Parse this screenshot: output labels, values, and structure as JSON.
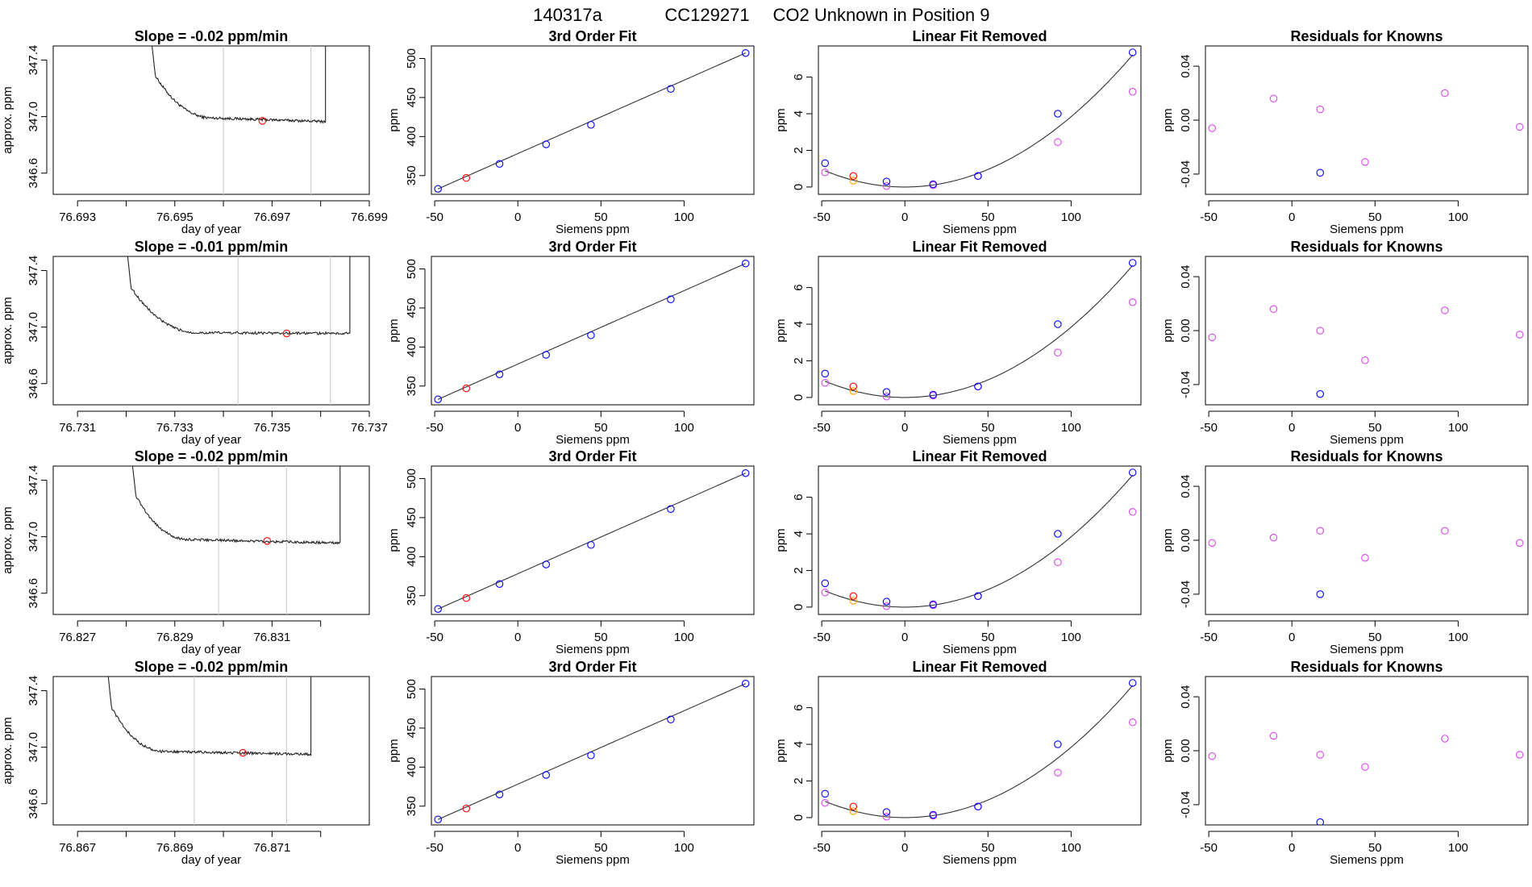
{
  "page": {
    "title_id": "140317a",
    "title_cylinder": "CC129271",
    "title_text": "CO2 Unknown in Position  9"
  },
  "colors": {
    "axis": "#000000",
    "trace": "#222222",
    "fit_line": "#333333",
    "gridline": "#cfcfcf",
    "known": "#0000ff",
    "unknown": "#ff0000",
    "orange": "#ffa500",
    "magenta": "#da44f0"
  },
  "panel_titles": {
    "fit": "3rd Order Fit",
    "linear_removed": "Linear Fit Removed",
    "residuals": "Residuals for Knowns"
  },
  "axis_labels": {
    "day": "day of year",
    "approx": "approx. ppm",
    "siemens": "Siemens ppm",
    "ppm": "ppm"
  },
  "chart_data": [
    {
      "type": "line",
      "panel": "trace",
      "title": "Slope =  -0.02  ppm/min",
      "xlabel": "day of year",
      "ylabel": "approx. ppm",
      "xlim": [
        76.6925,
        76.699
      ],
      "ylim": [
        346.45,
        347.5
      ],
      "xticks": [
        76.693,
        76.694,
        76.695,
        76.696,
        76.697,
        76.698,
        76.699
      ],
      "xtick_labels": [
        "76.693",
        "",
        "76.695",
        "",
        "76.697",
        "",
        "76.699"
      ],
      "yticks": [
        346.6,
        347.0,
        347.4
      ],
      "ytick_labels": [
        "346.6",
        "347.0",
        "347.4"
      ],
      "vlines": [
        76.696,
        76.6978
      ],
      "trace": {
        "x0": 76.6945,
        "x_end": 76.6981,
        "x_flat": 76.6958,
        "x_steep_end": 76.6946,
        "start": 347.6,
        "tail": 347.04,
        "flat": 346.99,
        "dip": 346.965
      },
      "point": {
        "x": 76.6968,
        "y": 346.97
      }
    },
    {
      "type": "scatter",
      "panel": "fit",
      "title": "3rd Order Fit",
      "xlabel": "Siemens ppm",
      "ylabel": "ppm",
      "xlim": [
        -52,
        142
      ],
      "ylim": [
        326,
        516
      ],
      "xticks": [
        -50,
        0,
        50,
        100
      ],
      "xtick_labels": [
        "-50",
        "0",
        "50",
        "100"
      ],
      "yticks": [
        350,
        400,
        450,
        500
      ],
      "ytick_labels": [
        "350",
        "400",
        "450",
        "500"
      ],
      "fit_line": [
        [
          -48,
          333
        ],
        [
          137,
          507
        ]
      ],
      "points_known": [
        [
          -48,
          333
        ],
        [
          -11,
          365
        ],
        [
          17,
          390
        ],
        [
          44,
          415
        ],
        [
          92,
          461
        ],
        [
          137,
          507
        ]
      ],
      "points_unknown": [
        [
          -31,
          347
        ]
      ]
    },
    {
      "type": "scatter",
      "panel": "linear_removed",
      "title": "Linear Fit Removed",
      "xlabel": "Siemens ppm",
      "ylabel": "ppm",
      "xlim": [
        -52,
        142
      ],
      "ylim": [
        -0.4,
        7.7
      ],
      "xticks": [
        -50,
        0,
        50,
        100
      ],
      "xtick_labels": [
        "-50",
        "0",
        "50",
        "100"
      ],
      "yticks": [
        0,
        2,
        4,
        6
      ],
      "ytick_labels": [
        "0",
        "2",
        "4",
        "6"
      ],
      "curve_coeff": 0.000384,
      "curve_x": [
        -48,
        137
      ],
      "points_known": [
        [
          -48,
          1.3
        ],
        [
          -11,
          0.3
        ],
        [
          17,
          0.15
        ],
        [
          44,
          0.6
        ],
        [
          92,
          4.0
        ],
        [
          137,
          7.35
        ]
      ],
      "points_magenta": [
        [
          -48,
          0.8
        ],
        [
          -11,
          0.05
        ],
        [
          17,
          0.1
        ],
        [
          44,
          0.6
        ],
        [
          92,
          2.45
        ],
        [
          137,
          5.2
        ]
      ],
      "points_unknown": [
        [
          -31,
          0.6
        ]
      ],
      "points_orange": [
        [
          -31,
          0.35
        ]
      ]
    },
    {
      "type": "scatter",
      "panel": "residuals",
      "title": "Residuals for Knowns",
      "xlabel": "Siemens ppm",
      "ylabel": "ppm",
      "xlim": [
        -52,
        142
      ],
      "ylim": [
        -0.055,
        0.055
      ],
      "xticks": [
        -50,
        0,
        50,
        100
      ],
      "xtick_labels": [
        "-50",
        "0",
        "50",
        "100"
      ],
      "yticks": [
        -0.04,
        0.0,
        0.04
      ],
      "ytick_labels": [
        "-0.04",
        "0.00",
        "0.04"
      ],
      "points_magenta": [
        [
          -48,
          -0.006
        ],
        [
          -11,
          0.016
        ],
        [
          17,
          0.008
        ],
        [
          44,
          -0.031
        ],
        [
          92,
          0.02
        ],
        [
          137,
          -0.005
        ]
      ],
      "points_known": [
        [
          17,
          -0.039
        ]
      ]
    },
    {
      "type": "line",
      "panel": "trace",
      "title": "Slope =  -0.01  ppm/min",
      "xlabel": "day of year",
      "ylabel": "approx. ppm",
      "xlim": [
        76.7305,
        76.737
      ],
      "ylim": [
        346.45,
        347.5
      ],
      "xticks": [
        76.731,
        76.732,
        76.733,
        76.734,
        76.735,
        76.736,
        76.737
      ],
      "xtick_labels": [
        "76.731",
        "",
        "76.733",
        "",
        "76.735",
        "",
        "76.737"
      ],
      "yticks": [
        346.6,
        347.0,
        347.4
      ],
      "ytick_labels": [
        "346.6",
        "347.0",
        "347.4"
      ],
      "vlines": [
        76.7343,
        76.7362
      ],
      "trace": {
        "x0": 76.732,
        "x_end": 76.7366,
        "x_flat": 76.7335,
        "x_steep_end": 76.7321,
        "start": 347.6,
        "tail": 347.03,
        "flat": 346.96,
        "dip": 346.955
      },
      "point": {
        "x": 76.7353,
        "y": 346.955
      }
    },
    {
      "type": "scatter",
      "panel": "fit",
      "title": "3rd Order Fit",
      "xlabel": "Siemens ppm",
      "ylabel": "ppm",
      "xlim": [
        -52,
        142
      ],
      "ylim": [
        326,
        516
      ],
      "xticks": [
        -50,
        0,
        50,
        100
      ],
      "xtick_labels": [
        "-50",
        "0",
        "50",
        "100"
      ],
      "yticks": [
        350,
        400,
        450,
        500
      ],
      "ytick_labels": [
        "350",
        "400",
        "450",
        "500"
      ],
      "fit_line": [
        [
          -48,
          333
        ],
        [
          137,
          507
        ]
      ],
      "points_known": [
        [
          -48,
          333
        ],
        [
          -11,
          365
        ],
        [
          17,
          390
        ],
        [
          44,
          415
        ],
        [
          92,
          461
        ],
        [
          137,
          507
        ]
      ],
      "points_unknown": [
        [
          -31,
          347
        ]
      ]
    },
    {
      "type": "scatter",
      "panel": "linear_removed",
      "title": "Linear Fit Removed",
      "xlabel": "Siemens ppm",
      "ylabel": "ppm",
      "xlim": [
        -52,
        142
      ],
      "ylim": [
        -0.4,
        7.7
      ],
      "xticks": [
        -50,
        0,
        50,
        100
      ],
      "xtick_labels": [
        "-50",
        "0",
        "50",
        "100"
      ],
      "yticks": [
        0,
        2,
        4,
        6
      ],
      "ytick_labels": [
        "0",
        "2",
        "4",
        "6"
      ],
      "curve_coeff": 0.000384,
      "curve_x": [
        -48,
        137
      ],
      "points_known": [
        [
          -48,
          1.3
        ],
        [
          -11,
          0.3
        ],
        [
          17,
          0.15
        ],
        [
          44,
          0.6
        ],
        [
          92,
          4.0
        ],
        [
          137,
          7.35
        ]
      ],
      "points_magenta": [
        [
          -48,
          0.8
        ],
        [
          -11,
          0.05
        ],
        [
          17,
          0.1
        ],
        [
          44,
          0.6
        ],
        [
          92,
          2.45
        ],
        [
          137,
          5.2
        ]
      ],
      "points_unknown": [
        [
          -31,
          0.6
        ]
      ],
      "points_orange": [
        [
          -31,
          0.35
        ]
      ]
    },
    {
      "type": "scatter",
      "panel": "residuals",
      "title": "Residuals for Knowns",
      "xlabel": "Siemens ppm",
      "ylabel": "ppm",
      "xlim": [
        -52,
        142
      ],
      "ylim": [
        -0.055,
        0.055
      ],
      "xticks": [
        -50,
        0,
        50,
        100
      ],
      "xtick_labels": [
        "-50",
        "0",
        "50",
        "100"
      ],
      "yticks": [
        -0.04,
        0.0,
        0.04
      ],
      "ytick_labels": [
        "-0.04",
        "0.00",
        "0.04"
      ],
      "points_magenta": [
        [
          -48,
          -0.005
        ],
        [
          -11,
          0.016
        ],
        [
          17,
          0.0
        ],
        [
          44,
          -0.022
        ],
        [
          92,
          0.015
        ],
        [
          137,
          -0.003
        ]
      ],
      "points_known": [
        [
          17,
          -0.047
        ]
      ]
    },
    {
      "type": "line",
      "panel": "trace",
      "title": "Slope =  -0.02  ppm/min",
      "xlabel": "day of year",
      "ylabel": "approx. ppm",
      "xlim": [
        76.8265,
        76.833
      ],
      "ylim": [
        346.45,
        347.5
      ],
      "xticks": [
        76.827,
        76.828,
        76.829,
        76.83,
        76.831,
        76.832
      ],
      "xtick_labels": [
        "76.827",
        "",
        "76.829",
        "",
        "76.831",
        ""
      ],
      "yticks": [
        346.6,
        347.0,
        347.4
      ],
      "ytick_labels": [
        "346.6",
        "347.0",
        "347.4"
      ],
      "vlines": [
        76.8299,
        76.8313
      ],
      "trace": {
        "x0": 76.8281,
        "x_end": 76.8324,
        "x_flat": 76.8293,
        "x_steep_end": 76.8282,
        "start": 347.6,
        "tail": 347.04,
        "flat": 346.98,
        "dip": 346.955
      },
      "point": {
        "x": 76.8309,
        "y": 346.97
      }
    },
    {
      "type": "scatter",
      "panel": "fit",
      "title": "3rd Order Fit",
      "xlabel": "Siemens ppm",
      "ylabel": "ppm",
      "xlim": [
        -52,
        142
      ],
      "ylim": [
        326,
        516
      ],
      "xticks": [
        -50,
        0,
        50,
        100
      ],
      "xtick_labels": [
        "-50",
        "0",
        "50",
        "100"
      ],
      "yticks": [
        350,
        400,
        450,
        500
      ],
      "ytick_labels": [
        "350",
        "400",
        "450",
        "500"
      ],
      "fit_line": [
        [
          -48,
          333
        ],
        [
          137,
          507
        ]
      ],
      "points_known": [
        [
          -48,
          333
        ],
        [
          -11,
          365
        ],
        [
          17,
          390
        ],
        [
          44,
          415
        ],
        [
          92,
          461
        ],
        [
          137,
          507
        ]
      ],
      "points_unknown": [
        [
          -31,
          347
        ]
      ]
    },
    {
      "type": "scatter",
      "panel": "linear_removed",
      "title": "Linear Fit Removed",
      "xlabel": "Siemens ppm",
      "ylabel": "ppm",
      "xlim": [
        -52,
        142
      ],
      "ylim": [
        -0.4,
        7.7
      ],
      "xticks": [
        -50,
        0,
        50,
        100
      ],
      "xtick_labels": [
        "-50",
        "0",
        "50",
        "100"
      ],
      "yticks": [
        0,
        2,
        4,
        6
      ],
      "ytick_labels": [
        "0",
        "2",
        "4",
        "6"
      ],
      "curve_coeff": 0.000384,
      "curve_x": [
        -48,
        137
      ],
      "points_known": [
        [
          -48,
          1.3
        ],
        [
          -11,
          0.3
        ],
        [
          17,
          0.15
        ],
        [
          44,
          0.6
        ],
        [
          92,
          4.0
        ],
        [
          137,
          7.35
        ]
      ],
      "points_magenta": [
        [
          -48,
          0.8
        ],
        [
          -11,
          0.05
        ],
        [
          17,
          0.1
        ],
        [
          44,
          0.6
        ],
        [
          92,
          2.45
        ],
        [
          137,
          5.2
        ]
      ],
      "points_unknown": [
        [
          -31,
          0.6
        ]
      ],
      "points_orange": [
        [
          -31,
          0.35
        ]
      ]
    },
    {
      "type": "scatter",
      "panel": "residuals",
      "title": "Residuals for Knowns",
      "xlabel": "Siemens ppm",
      "ylabel": "ppm",
      "xlim": [
        -52,
        142
      ],
      "ylim": [
        -0.055,
        0.055
      ],
      "xticks": [
        -50,
        0,
        50,
        100
      ],
      "xtick_labels": [
        "-50",
        "0",
        "50",
        "100"
      ],
      "yticks": [
        -0.04,
        0.0,
        0.04
      ],
      "ytick_labels": [
        "-0.04",
        "0.00",
        "0.04"
      ],
      "points_magenta": [
        [
          -48,
          -0.002
        ],
        [
          -11,
          0.002
        ],
        [
          17,
          0.007
        ],
        [
          44,
          -0.013
        ],
        [
          92,
          0.007
        ],
        [
          137,
          -0.002
        ]
      ],
      "points_known": [
        [
          17,
          -0.04
        ]
      ]
    },
    {
      "type": "line",
      "panel": "trace",
      "title": "Slope =  -0.02  ppm/min",
      "xlabel": "day of year",
      "ylabel": "approx. ppm",
      "xlim": [
        76.8665,
        76.873
      ],
      "ylim": [
        346.45,
        347.5
      ],
      "xticks": [
        76.867,
        76.868,
        76.869,
        76.87,
        76.871,
        76.872
      ],
      "xtick_labels": [
        "76.867",
        "",
        "76.869",
        "",
        "76.871",
        ""
      ],
      "yticks": [
        346.6,
        347.0,
        347.4
      ],
      "ytick_labels": [
        "346.6",
        "347.0",
        "347.4"
      ],
      "vlines": [
        76.8694,
        76.8713
      ],
      "trace": {
        "x0": 76.8676,
        "x_end": 76.8718,
        "x_flat": 76.8688,
        "x_steep_end": 76.8677,
        "start": 347.6,
        "tail": 347.03,
        "flat": 346.97,
        "dip": 346.95
      },
      "point": {
        "x": 76.8704,
        "y": 346.96
      }
    },
    {
      "type": "scatter",
      "panel": "fit",
      "title": "3rd Order Fit",
      "xlabel": "Siemens ppm",
      "ylabel": "ppm",
      "xlim": [
        -52,
        142
      ],
      "ylim": [
        326,
        516
      ],
      "xticks": [
        -50,
        0,
        50,
        100
      ],
      "xtick_labels": [
        "-50",
        "0",
        "50",
        "100"
      ],
      "yticks": [
        350,
        400,
        450,
        500
      ],
      "ytick_labels": [
        "350",
        "400",
        "450",
        "500"
      ],
      "fit_line": [
        [
          -48,
          333
        ],
        [
          137,
          507
        ]
      ],
      "points_known": [
        [
          -48,
          333
        ],
        [
          -11,
          365
        ],
        [
          17,
          390
        ],
        [
          44,
          415
        ],
        [
          92,
          461
        ],
        [
          137,
          507
        ]
      ],
      "points_unknown": [
        [
          -31,
          347
        ]
      ]
    },
    {
      "type": "scatter",
      "panel": "linear_removed",
      "title": "Linear Fit Removed",
      "xlabel": "Siemens ppm",
      "ylabel": "ppm",
      "xlim": [
        -52,
        142
      ],
      "ylim": [
        -0.4,
        7.7
      ],
      "xticks": [
        -50,
        0,
        50,
        100
      ],
      "xtick_labels": [
        "-50",
        "0",
        "50",
        "100"
      ],
      "yticks": [
        0,
        2,
        4,
        6
      ],
      "ytick_labels": [
        "0",
        "2",
        "4",
        "6"
      ],
      "curve_coeff": 0.000384,
      "curve_x": [
        -48,
        137
      ],
      "points_known": [
        [
          -48,
          1.3
        ],
        [
          -11,
          0.3
        ],
        [
          17,
          0.15
        ],
        [
          44,
          0.6
        ],
        [
          92,
          4.0
        ],
        [
          137,
          7.35
        ]
      ],
      "points_magenta": [
        [
          -48,
          0.8
        ],
        [
          -11,
          0.05
        ],
        [
          17,
          0.1
        ],
        [
          44,
          0.6
        ],
        [
          92,
          2.45
        ],
        [
          137,
          5.2
        ]
      ],
      "points_unknown": [
        [
          -31,
          0.6
        ]
      ],
      "points_orange": [
        [
          -31,
          0.35
        ]
      ]
    },
    {
      "type": "scatter",
      "panel": "residuals",
      "title": "Residuals for Knowns",
      "xlabel": "Siemens ppm",
      "ylabel": "ppm",
      "xlim": [
        -52,
        142
      ],
      "ylim": [
        -0.055,
        0.055
      ],
      "xticks": [
        -50,
        0,
        50,
        100
      ],
      "xtick_labels": [
        "-50",
        "0",
        "50",
        "100"
      ],
      "yticks": [
        -0.04,
        0.0,
        0.04
      ],
      "ytick_labels": [
        "-0.04",
        "0.00",
        "0.04"
      ],
      "points_magenta": [
        [
          -48,
          -0.004
        ],
        [
          -11,
          0.011
        ],
        [
          17,
          -0.003
        ],
        [
          44,
          -0.012
        ],
        [
          92,
          0.009
        ],
        [
          137,
          -0.003
        ]
      ],
      "points_known": [
        [
          17,
          -0.053
        ]
      ]
    }
  ]
}
